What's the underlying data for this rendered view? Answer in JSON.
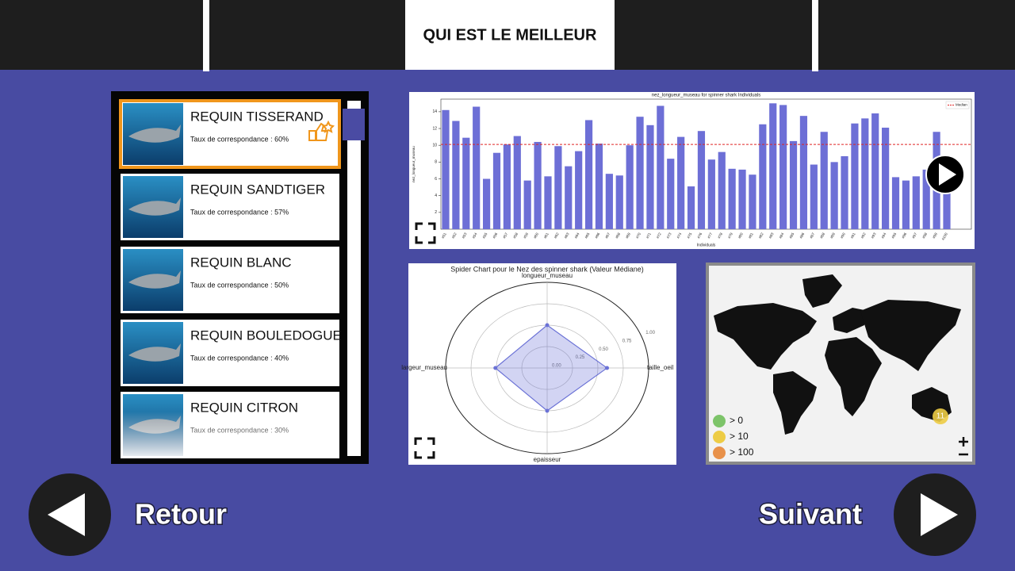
{
  "header": {
    "title": "QUI EST LE MEILLEUR"
  },
  "sharks": [
    {
      "name": "REQUIN TISSERAND",
      "match": "Taux de correspondance : 60%"
    },
    {
      "name": "REQUIN SANDTIGER",
      "match": "Taux de correspondance : 57%"
    },
    {
      "name": "REQUIN BLANC",
      "match": "Taux de correspondance : 50%"
    },
    {
      "name": "REQUIN BOULEDOGUE",
      "match": "Taux de correspondance : 40%"
    },
    {
      "name": "REQUIN CITRON",
      "match": "Taux de correspondance : 30%"
    }
  ],
  "chart_data": [
    {
      "type": "bar",
      "title": "nez_longueur_museau for spinner shark Individuals",
      "x_label": "Individuals",
      "y_label": "nez_longueur_museau",
      "categories": [
        "#51",
        "#52",
        "#53",
        "#54",
        "#55",
        "#56",
        "#57",
        "#58",
        "#59",
        "#60",
        "#61",
        "#62",
        "#63",
        "#64",
        "#65",
        "#66",
        "#67",
        "#68",
        "#69",
        "#70",
        "#71",
        "#72",
        "#73",
        "#74",
        "#75",
        "#76",
        "#77",
        "#78",
        "#79",
        "#80",
        "#81",
        "#82",
        "#83",
        "#84",
        "#85",
        "#86",
        "#87",
        "#88",
        "#89",
        "#90",
        "#91",
        "#92",
        "#93",
        "#94",
        "#95",
        "#96",
        "#97",
        "#98",
        "#99",
        "#100"
      ],
      "values": [
        14.2,
        12.9,
        10.9,
        14.6,
        6.0,
        9.1,
        10.1,
        11.1,
        5.8,
        10.4,
        6.3,
        9.9,
        7.5,
        9.3,
        13.0,
        10.2,
        6.6,
        6.4,
        10.0,
        13.4,
        12.4,
        14.7,
        8.4,
        11.0,
        5.1,
        11.7,
        8.3,
        9.2,
        7.2,
        7.1,
        6.5,
        12.5,
        15.0,
        14.8,
        10.5,
        13.5,
        7.7,
        11.6,
        8.0,
        8.7,
        12.6,
        13.2,
        13.8,
        12.1,
        6.2,
        5.8,
        6.3,
        7.1,
        11.6,
        5.0
      ],
      "color": "#6d6fd6",
      "ylim": [
        0,
        15.5
      ],
      "yticks": [
        2,
        4,
        6,
        8,
        10,
        12,
        14
      ],
      "median": {
        "name": "Median",
        "value": 10.1,
        "color": "#e02424"
      },
      "legend": "upper right"
    },
    {
      "type": "radar",
      "title": "Spider Chart pour le Nez des spinner shark (Valeur Médiane)",
      "categories": [
        "longueur_museau",
        "taille_oeil",
        "epaisseur",
        "largeur_museau"
      ],
      "values": [
        0.5,
        0.59,
        0.5,
        0.51
      ],
      "color": "#6b72d6",
      "ylim": [
        0,
        1
      ],
      "yticks": [
        {
          "value": 0,
          "label": "0.00"
        },
        {
          "value": 0.25,
          "label": "0.25"
        },
        {
          "value": 0.5,
          "label": "0.50"
        },
        {
          "value": 0.75,
          "label": "0.75"
        },
        {
          "value": 1,
          "label": "1.00"
        }
      ]
    }
  ],
  "map": {
    "legend": [
      {
        "label": "> 0",
        "color": "#7dc46a"
      },
      {
        "label": "> 10",
        "color": "#edcc45"
      },
      {
        "label": "> 100",
        "color": "#e8914a"
      }
    ],
    "marker": "11"
  },
  "nav": {
    "back": "Retour",
    "next": "Suivant"
  }
}
